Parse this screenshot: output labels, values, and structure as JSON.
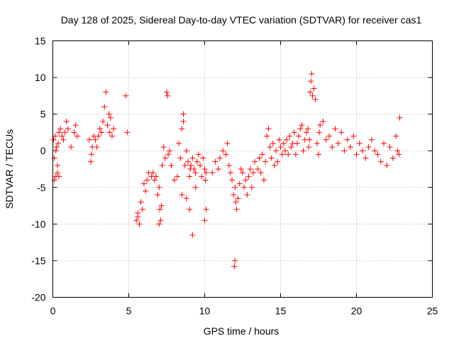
{
  "chart_data": {
    "type": "scatter",
    "title": "Day 128 of 2025, Sidereal Day-to-day VTEC variation (SDTVAR) for receiver cas1",
    "xlabel": "GPS time / hours",
    "ylabel": "SDTVAR / TECUs",
    "xlim": [
      0,
      25
    ],
    "ylim": [
      -20,
      15
    ],
    "x_ticks": [
      0,
      5,
      10,
      15,
      20,
      25
    ],
    "x_tick_labels": [
      "0",
      "5",
      "10",
      "15",
      "20",
      "25"
    ],
    "y_ticks": [
      15,
      10,
      5,
      0,
      -5,
      -10,
      -15,
      -20
    ],
    "y_tick_labels": [
      "15",
      "10",
      "5",
      "0",
      "-5",
      "-10",
      "-15",
      "-20"
    ],
    "grid": true,
    "marker": "+",
    "series": [
      {
        "name": "cas1",
        "color": "#ff0000",
        "x": [
          0.05,
          0.1,
          0.15,
          0.2,
          0.25,
          0.3,
          0.35,
          0.4,
          0.1,
          0.2,
          0.3,
          0.4,
          0.5,
          0.6,
          0.7,
          0.8,
          0.9,
          1.0,
          1.2,
          1.4,
          1.5,
          1.6,
          2.4,
          2.5,
          2.55,
          2.6,
          2.7,
          2.8,
          2.9,
          3.0,
          3.1,
          3.2,
          3.3,
          3.4,
          3.5,
          3.6,
          3.7,
          3.75,
          3.8,
          3.9,
          4.0,
          4.8,
          4.9,
          5.5,
          5.6,
          5.8,
          5.9,
          6.0,
          6.1,
          6.2,
          6.3,
          6.5,
          6.6,
          6.7,
          6.8,
          6.9,
          7.0,
          7.05,
          7.1,
          7.15,
          7.2,
          7.3,
          7.4,
          7.5,
          7.55,
          7.6,
          7.7,
          7.8,
          8.0,
          8.2,
          8.3,
          8.4,
          8.5,
          8.6,
          8.7,
          8.8,
          8.9,
          9.0,
          9.05,
          9.1,
          9.2,
          9.3,
          9.4,
          9.5,
          9.6,
          9.7,
          9.8,
          9.9,
          10.0,
          10.05,
          10.1,
          10.5,
          10.7,
          10.9,
          11.0,
          11.2,
          11.4,
          11.5,
          11.6,
          11.7,
          11.8,
          11.9,
          12.0,
          12.05,
          12.1,
          12.2,
          12.3,
          12.4,
          12.5,
          12.6,
          12.7,
          12.8,
          12.9,
          13.0,
          13.1,
          13.2,
          13.3,
          13.5,
          13.6,
          13.7,
          13.8,
          13.9,
          14.0,
          14.1,
          14.2,
          14.3,
          14.4,
          14.5,
          14.6,
          14.7,
          14.8,
          14.9,
          15.0,
          15.1,
          15.2,
          15.3,
          15.4,
          15.5,
          15.6,
          15.7,
          15.8,
          15.9,
          16.0,
          16.1,
          16.2,
          16.3,
          16.4,
          16.5,
          16.6,
          16.7,
          16.8,
          16.85,
          16.9,
          16.95,
          17.0,
          17.05,
          17.1,
          17.2,
          17.3,
          17.4,
          17.5,
          17.55,
          17.6,
          17.8,
          18.0,
          18.2,
          18.4,
          18.6,
          18.8,
          19.0,
          19.2,
          19.4,
          19.6,
          19.8,
          20.0,
          20.2,
          20.4,
          20.6,
          20.8,
          21.0,
          21.2,
          21.4,
          21.6,
          21.8,
          22.0,
          22.2,
          22.4,
          22.6,
          22.7,
          22.8,
          22.85,
          12.0,
          11.95,
          9.0,
          9.2,
          8.8,
          7.0,
          5.6,
          5.7,
          10.0,
          10.1,
          9.4,
          8.5,
          8.6
        ],
        "y": [
          1.5,
          -1.0,
          2.0,
          -3.5,
          0.5,
          -2.0,
          1.0,
          2.5,
          -4.0,
          0.0,
          -3.0,
          -3.5,
          3.0,
          2.0,
          1.5,
          2.5,
          4.0,
          3.0,
          0.5,
          2.5,
          3.5,
          2.0,
          1.5,
          -1.5,
          -0.5,
          0.5,
          2.0,
          1.5,
          0.5,
          2.0,
          3.0,
          2.5,
          4.0,
          6.0,
          8.0,
          3.5,
          5.0,
          2.5,
          4.5,
          2.0,
          3.0,
          7.5,
          2.5,
          -9.5,
          -8.5,
          -7.0,
          -8.0,
          -4.5,
          -5.5,
          -4.0,
          -3.0,
          -3.5,
          -3.0,
          -4.0,
          -3.5,
          -6.0,
          -5.0,
          -8.0,
          -9.5,
          -7.5,
          -2.0,
          0.5,
          -1.0,
          8.0,
          7.5,
          -0.5,
          0.0,
          -2.0,
          -4.0,
          -3.5,
          1.0,
          -1.0,
          3.0,
          5.0,
          -2.0,
          0.0,
          -1.5,
          -3.5,
          -2.5,
          -2.0,
          -1.0,
          -2.5,
          -3.0,
          -1.5,
          -0.5,
          -2.0,
          -3.5,
          -1.0,
          -2.5,
          -4.0,
          -3.0,
          -3.0,
          -1.5,
          -2.5,
          -1.0,
          0.0,
          -0.5,
          1.0,
          -2.0,
          -3.0,
          -4.0,
          -6.0,
          -5.0,
          -7.0,
          -8.0,
          -6.5,
          -4.5,
          -2.5,
          -3.0,
          -5.0,
          -4.0,
          -6.0,
          -3.5,
          -2.5,
          -5.0,
          -3.0,
          -1.5,
          -2.5,
          -1.0,
          -3.0,
          -0.5,
          -4.0,
          -1.5,
          2.0,
          3.0,
          0.5,
          -1.0,
          1.0,
          -2.0,
          0.0,
          -1.5,
          1.5,
          0.5,
          -0.5,
          1.0,
          0.0,
          1.5,
          -0.5,
          2.0,
          0.5,
          1.0,
          2.5,
          -0.5,
          1.0,
          2.0,
          3.0,
          3.5,
          0.0,
          1.5,
          2.5,
          3.0,
          0.5,
          1.5,
          8.0,
          9.5,
          10.5,
          7.5,
          8.5,
          7.0,
          1.0,
          -0.5,
          2.5,
          3.5,
          4.0,
          1.5,
          2.0,
          0.5,
          3.0,
          1.0,
          2.5,
          0.0,
          1.5,
          0.5,
          2.0,
          -0.5,
          1.0,
          0.0,
          -1.0,
          0.5,
          1.5,
          0.0,
          -0.5,
          -1.5,
          1.0,
          -2.0,
          0.5,
          -1.0,
          2.0,
          0.0,
          -0.5,
          4.5,
          -15.0,
          -15.8,
          -8.0,
          -11.5,
          -6.5,
          -10.0,
          -9.0,
          -10.0,
          -9.5,
          -8.0,
          -5.0,
          -6.0,
          4.0
        ]
      }
    ]
  }
}
